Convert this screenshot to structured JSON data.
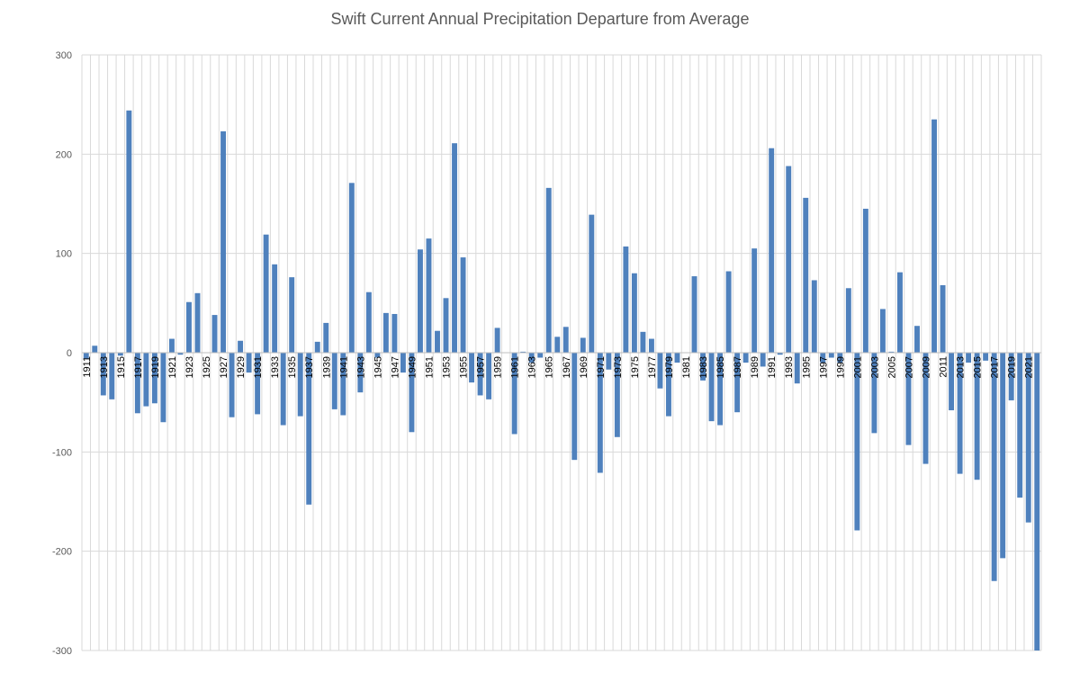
{
  "chart_data": {
    "type": "bar",
    "title": "Swift Current Annual Precipitation Departure from Average",
    "xlabel": "",
    "ylabel": "",
    "ylim": [
      -300,
      300
    ],
    "yticks": [
      300,
      200,
      100,
      0,
      -100,
      -200,
      -300
    ],
    "ytick_labels": [
      "300",
      "200",
      "100",
      "0",
      "-100",
      "-200",
      "-300"
    ],
    "grid": true,
    "legend": "none",
    "bar_color": "#4f81bd",
    "categories": [
      "1911",
      "1912",
      "1913",
      "1914",
      "1915",
      "1916",
      "1917",
      "1918",
      "1919",
      "1920",
      "1921",
      "1922",
      "1923",
      "1924",
      "1925",
      "1926",
      "1927",
      "1928",
      "1929",
      "1930",
      "1931",
      "1932",
      "1933",
      "1934",
      "1935",
      "1936",
      "1937",
      "1938",
      "1939",
      "1940",
      "1941",
      "1942",
      "1943",
      "1944",
      "1945",
      "1946",
      "1947",
      "1948",
      "1949",
      "1950",
      "1951",
      "1952",
      "1953",
      "1954",
      "1955",
      "1956",
      "1957",
      "1958",
      "1959",
      "1960",
      "1961",
      "1962",
      "1963",
      "1964",
      "1965",
      "1966",
      "1967",
      "1968",
      "1969",
      "1970",
      "1971",
      "1972",
      "1973",
      "1974",
      "1975",
      "1976",
      "1977",
      "1978",
      "1979",
      "1980",
      "1981",
      "1982",
      "1983",
      "1984",
      "1985",
      "1986",
      "1987",
      "1988",
      "1989",
      "1990",
      "1991",
      "1992",
      "1993",
      "1994",
      "1995",
      "1996",
      "1997",
      "1998",
      "1999",
      "2000",
      "2001",
      "2002",
      "2003",
      "2004",
      "2005",
      "2006",
      "2007",
      "2008",
      "2009",
      "2010",
      "2011",
      "2012",
      "2013",
      "2014",
      "2015",
      "2016",
      "2017",
      "2018",
      "2019",
      "2020",
      "2021",
      "2022"
    ],
    "tick_labels_shown": [
      "1911",
      "1913",
      "1915",
      "1917",
      "1919",
      "1921",
      "1923",
      "1925",
      "1927",
      "1929",
      "1931",
      "1933",
      "1935",
      "1937",
      "1939",
      "1941",
      "1943",
      "1945",
      "1947",
      "1949",
      "1951",
      "1953",
      "1955",
      "1957",
      "1959",
      "1961",
      "1963",
      "1965",
      "1967",
      "1969",
      "1971",
      "1973",
      "1975",
      "1977",
      "1979",
      "1981",
      "1983",
      "1985",
      "1987",
      "1989",
      "1991",
      "1993",
      "1995",
      "1997",
      "1999",
      "2001",
      "2003",
      "2005",
      "2007",
      "2009",
      "2011",
      "2013",
      "2015",
      "2017",
      "2019",
      "2021"
    ],
    "values": [
      -6,
      7,
      -43,
      -47,
      -3,
      244,
      -61,
      -54,
      -51,
      -70,
      14,
      -2,
      51,
      60,
      0,
      38,
      223,
      -65,
      12,
      -20,
      -62,
      119,
      89,
      -73,
      76,
      -64,
      -153,
      11,
      30,
      -57,
      -63,
      171,
      -40,
      61,
      -5,
      40,
      39,
      -20,
      -80,
      104,
      115,
      22,
      55,
      211,
      96,
      -30,
      -43,
      -47,
      25,
      0,
      -82,
      1,
      -10,
      -5,
      166,
      16,
      26,
      -108,
      15,
      139,
      -121,
      -17,
      -85,
      107,
      80,
      21,
      14,
      -36,
      -64,
      -10,
      0,
      77,
      -28,
      -69,
      -73,
      82,
      -60,
      -10,
      105,
      -14,
      206,
      -2,
      188,
      -31,
      156,
      73,
      -10,
      -5,
      -10,
      65,
      -179,
      145,
      -81,
      44,
      1,
      81,
      -93,
      27,
      -112,
      235,
      68,
      -58,
      -122,
      -10,
      -128,
      -8,
      -230,
      -207,
      -48,
      -146,
      -171,
      -300
    ]
  }
}
